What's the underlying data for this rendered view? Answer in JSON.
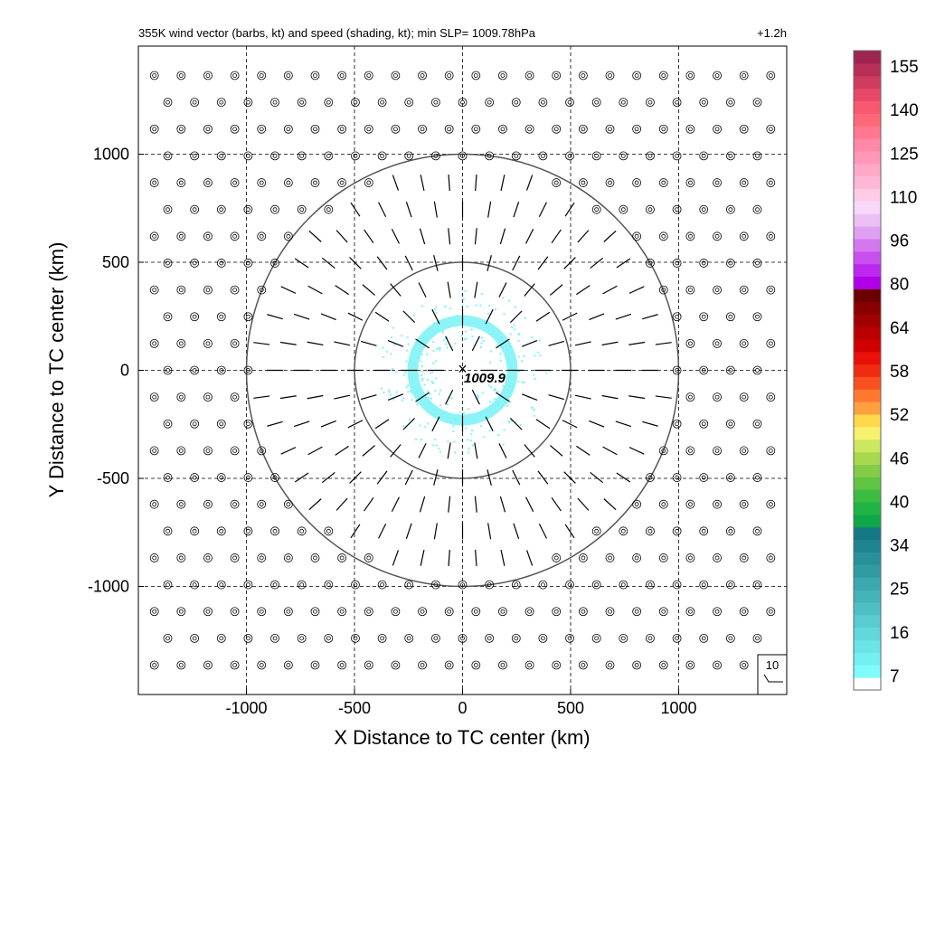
{
  "chart_data": {
    "type": "scatter",
    "title": "355K wind vector (barbs, kt) and speed (shading, kt); min SLP= 1009.78hPa",
    "lead_time": "+1.2h",
    "xlabel": "X Distance to TC center (km)",
    "ylabel": "Y Distance to TC center (km)",
    "xlim": [
      -1500,
      1500
    ],
    "ylim": [
      -1500,
      1500
    ],
    "x_ticks": [
      "-1000",
      "-500",
      "0",
      "500",
      "1000"
    ],
    "y_ticks": [
      "1000",
      "500",
      "0",
      "-500",
      "-1000"
    ],
    "tick_values": [
      -1000,
      -500,
      0,
      500,
      1000
    ],
    "grid": "dashed",
    "range_rings_km": [
      500,
      1000
    ],
    "center_marker": "×",
    "center_slp_label": "1009.9",
    "barb_reference": "10",
    "shaded_ring": {
      "radius_km": 230,
      "color": "#7ff3f5",
      "speed_kt": "7-16"
    },
    "colorbar": {
      "tick_labels": [
        "7",
        "16",
        "25",
        "34",
        "40",
        "46",
        "52",
        "58",
        "64",
        "80",
        "96",
        "110",
        "125",
        "140",
        "155"
      ],
      "colors": [
        "#ffffff",
        "#7ffdfd",
        "#75f0f2",
        "#6ce4e6",
        "#62d8da",
        "#58ccd0",
        "#4ec0c4",
        "#44b4b8",
        "#3aa8ae",
        "#309ca2",
        "#289098",
        "#1e848e",
        "#167884",
        "#10a64a",
        "#20b444",
        "#3cbc40",
        "#60c444",
        "#84cc48",
        "#a8d850",
        "#cce860",
        "#f8f070",
        "#ffd84c",
        "#ffa040",
        "#ff7830",
        "#f85020",
        "#f02c10",
        "#e81008",
        "#d00000",
        "#b80000",
        "#a00000",
        "#880000",
        "#6a0000",
        "#b000e8",
        "#bc28ec",
        "#c850ee",
        "#d478f0",
        "#e0a0f2",
        "#ecc0f4",
        "#f8d8f8",
        "#ffcce8",
        "#ffb8d8",
        "#ffa8c8",
        "#ff98b8",
        "#ff88a8",
        "#ff7890",
        "#ff6878",
        "#f85870",
        "#e84868",
        "#d03c60",
        "#b83058",
        "#a02450"
      ]
    }
  }
}
